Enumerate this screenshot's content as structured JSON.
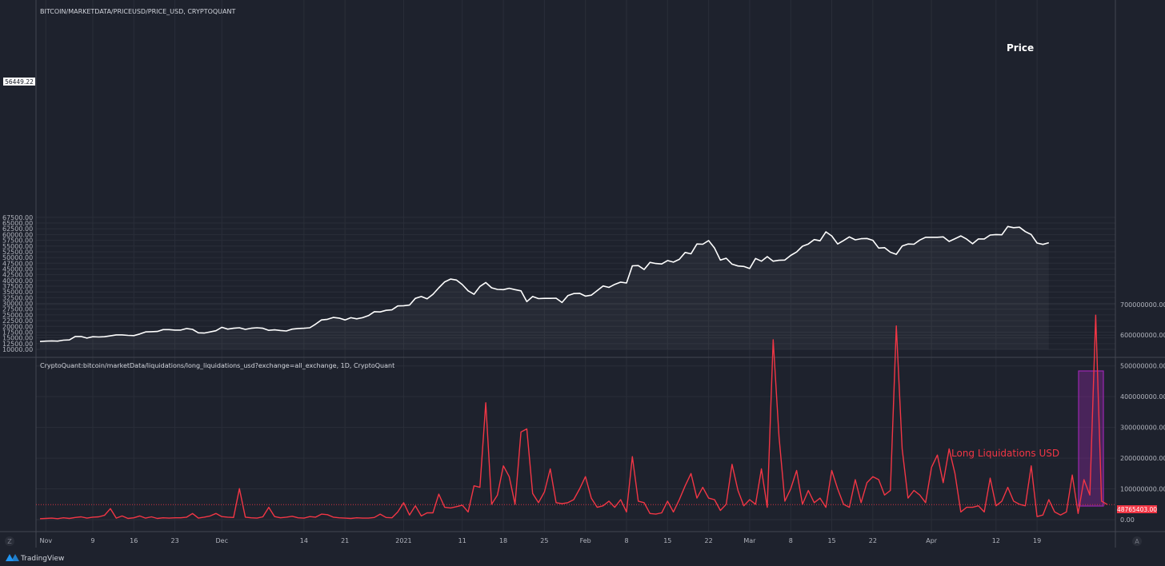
{
  "colors": {
    "background": "#1e222d",
    "grid": "#2a2e39",
    "price_line": "#ffffff",
    "liquidation_line": "#f23645",
    "highlight_box": "#9c27b0"
  },
  "top_panel": {
    "header": "BITCOIN/MARKETDATA/PRICEUSD/PRICE_USD, CRYPTOQUANT",
    "annotation": "Price",
    "last_value_label": "56449.22",
    "y_tick_labels": [
      "10000.00",
      "12500.00",
      "15000.00",
      "17500.00",
      "20000.00",
      "22500.00",
      "25000.00",
      "27500.00",
      "30000.00",
      "32500.00",
      "35000.00",
      "37500.00",
      "40000.00",
      "42500.00",
      "45000.00",
      "47500.00",
      "50000.00",
      "52500.00",
      "55000.00",
      "57500.00",
      "60000.00",
      "62500.00",
      "65000.00",
      "67500.00"
    ]
  },
  "bottom_panel": {
    "header": "CryptoQuant:bitcoin/marketData/liquidations/long_liquidations_usd?exchange=all_exchange, 1D, CryptoQuant",
    "annotation": "Long Liquidations USD",
    "last_value_label": "48765403.00",
    "y_tick_labels": [
      "0.00",
      "100000000.00",
      "200000000.00",
      "300000000.00",
      "400000000.00",
      "500000000.00",
      "600000000.00",
      "700000000.00"
    ]
  },
  "x_axis": {
    "tick_labels": [
      "Nov",
      "9",
      "16",
      "23",
      "Dec",
      "14",
      "21",
      "2021",
      "11",
      "18",
      "25",
      "Feb",
      "8",
      "15",
      "22",
      "Mar",
      "8",
      "15",
      "22",
      "Apr",
      "12",
      "19"
    ],
    "tick_days": [
      1,
      9,
      16,
      23,
      31,
      45,
      52,
      62,
      72,
      79,
      86,
      93,
      100,
      107,
      114,
      121,
      128,
      135,
      142,
      152,
      163,
      170
    ]
  },
  "footer": {
    "brand": "TradingView",
    "left_button": "Z",
    "right_button": "A"
  },
  "chart_data": [
    {
      "type": "line",
      "title": "BITCOIN/MARKETDATA/PRICEUSD/PRICE_USD, CRYPTOQUANT",
      "x_start": "2020-10-26",
      "x_end": "2021-04-20",
      "ylim": [
        8000,
        68500
      ],
      "series": [
        {
          "name": "Price",
          "values": [
            13400,
            13600,
            13700,
            13600,
            14000,
            14100,
            15600,
            15600,
            14900,
            15500,
            15400,
            15500,
            15900,
            16300,
            16300,
            16100,
            16000,
            16700,
            17600,
            17700,
            17800,
            18600,
            18600,
            18400,
            18400,
            19100,
            18700,
            17200,
            17100,
            17600,
            18100,
            19600,
            18800,
            19200,
            19400,
            18700,
            19200,
            19400,
            19200,
            18300,
            18500,
            18200,
            18000,
            18800,
            19100,
            19200,
            19400,
            21000,
            22800,
            23100,
            23900,
            23600,
            22800,
            23800,
            23300,
            23800,
            24700,
            26400,
            26300,
            27000,
            27200,
            28900,
            29000,
            29300,
            32200,
            33000,
            32000,
            34000,
            36800,
            39400,
            40600,
            40200,
            38200,
            35500,
            34000,
            37400,
            39100,
            36800,
            36100,
            36000,
            36600,
            36000,
            35500,
            30800,
            33000,
            32100,
            32200,
            32200,
            32300,
            30400,
            33400,
            34300,
            34400,
            33200,
            33600,
            35600,
            37600,
            37000,
            38300,
            39300,
            38900,
            46400,
            46500,
            44800,
            47900,
            47400,
            47200,
            48700,
            48000,
            49200,
            52200,
            51600,
            55900,
            55800,
            57400,
            54100,
            48900,
            49700,
            47100,
            46300,
            46100,
            45200,
            49600,
            48400,
            50400,
            48400,
            48800,
            48900,
            50900,
            52400,
            54900,
            55900,
            57800,
            57300,
            61200,
            59400,
            55900,
            57400,
            59000,
            57700,
            58200,
            58300,
            57500,
            54100,
            54300,
            52300,
            51400,
            55000,
            55900,
            55800,
            57600,
            58800,
            58800,
            58800,
            59000,
            57000,
            58200,
            59400,
            58000,
            56000,
            58100,
            58100,
            59800,
            60000,
            59900,
            63500,
            63000,
            63200,
            61300,
            60000,
            56300,
            55700,
            56449
          ]
        }
      ]
    },
    {
      "type": "line",
      "title": "CryptoQuant:bitcoin/marketData/liquidations/long_liquidations_usd?exchange=all_exchange, 1D, CryptoQuant",
      "x_start": "2020-10-26",
      "x_end": "2021-04-20",
      "ylim": [
        -50000000,
        710000000
      ],
      "series": [
        {
          "name": "Long Liquidations USD",
          "values": [
            3000000,
            4000000,
            5000000,
            3000000,
            6000000,
            4000000,
            7000000,
            9000000,
            5000000,
            8000000,
            9000000,
            14000000,
            36000000,
            5000000,
            12000000,
            4000000,
            6000000,
            12000000,
            5000000,
            9000000,
            4000000,
            6000000,
            5000000,
            6000000,
            6000000,
            8000000,
            20000000,
            5000000,
            8000000,
            12000000,
            20000000,
            10000000,
            8000000,
            7000000,
            101000000,
            8000000,
            6000000,
            5000000,
            9000000,
            40000000,
            10000000,
            6000000,
            8000000,
            11000000,
            6000000,
            5000000,
            10000000,
            8000000,
            18000000,
            16000000,
            8000000,
            6000000,
            5000000,
            4000000,
            6000000,
            5000000,
            5000000,
            7000000,
            18000000,
            7000000,
            6000000,
            25000000,
            55000000,
            15000000,
            45000000,
            12000000,
            22000000,
            22000000,
            83000000,
            40000000,
            38000000,
            42000000,
            47000000,
            25000000,
            110000000,
            105000000,
            380000000,
            50000000,
            80000000,
            175000000,
            140000000,
            50000000,
            285000000,
            295000000,
            85000000,
            55000000,
            90000000,
            165000000,
            55000000,
            52000000,
            55000000,
            65000000,
            100000000,
            140000000,
            70000000,
            40000000,
            45000000,
            60000000,
            40000000,
            65000000,
            25000000,
            205000000,
            60000000,
            55000000,
            20000000,
            18000000,
            22000000,
            60000000,
            25000000,
            65000000,
            110000000,
            150000000,
            70000000,
            105000000,
            70000000,
            65000000,
            30000000,
            50000000,
            180000000,
            95000000,
            45000000,
            65000000,
            50000000,
            165000000,
            40000000,
            585000000,
            270000000,
            60000000,
            100000000,
            160000000,
            50000000,
            95000000,
            55000000,
            70000000,
            40000000,
            160000000,
            100000000,
            50000000,
            40000000,
            130000000,
            55000000,
            120000000,
            140000000,
            130000000,
            80000000,
            95000000,
            630000000,
            230000000,
            70000000,
            95000000,
            80000000,
            55000000,
            170000000,
            210000000,
            120000000,
            230000000,
            150000000,
            25000000,
            40000000,
            40000000,
            45000000,
            25000000,
            135000000,
            45000000,
            60000000,
            105000000,
            60000000,
            50000000,
            45000000,
            175000000,
            10000000,
            15000000,
            65000000,
            25000000,
            15000000,
            25000000,
            145000000,
            20000000,
            130000000,
            80000000,
            665000000,
            60000000,
            48765403
          ]
        }
      ]
    }
  ]
}
